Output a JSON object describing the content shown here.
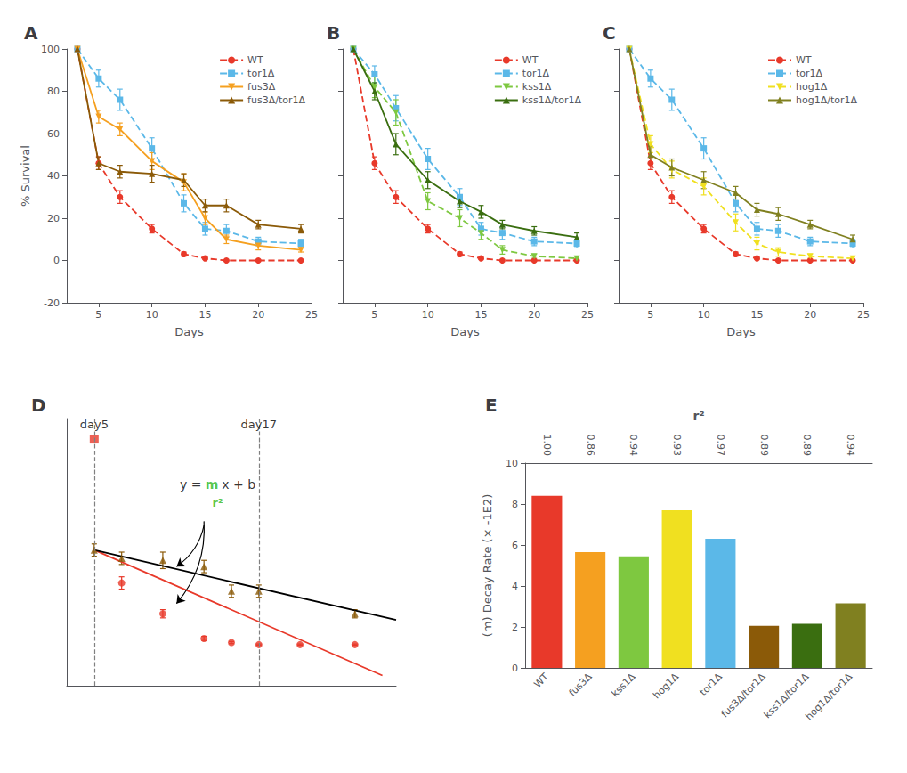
{
  "chart_data": [
    {
      "type": "line",
      "title": "A",
      "xlabel": "Days",
      "ylabel": "% Survival",
      "x": [
        3,
        5,
        7,
        10,
        13,
        15,
        17,
        20,
        24
      ],
      "series": [
        {
          "name": "WT",
          "color": "#e8392a",
          "marker": "circle",
          "line_style": "dashed",
          "values": [
            100,
            46,
            30,
            15,
            3,
            1,
            0,
            0,
            0
          ],
          "yerr": [
            0,
            3,
            3,
            2,
            1,
            0.5,
            0.3,
            0.2,
            0.2
          ]
        },
        {
          "name": "tor1Δ",
          "color": "#5bb8e8",
          "marker": "square",
          "line_style": "dashed",
          "values": [
            100,
            86,
            76,
            53,
            27,
            15,
            14,
            9,
            8
          ],
          "yerr": [
            0,
            4,
            5,
            5,
            4,
            3,
            3,
            2,
            2
          ]
        },
        {
          "name": "fus3Δ",
          "color": "#f5a020",
          "marker": "triangle-down",
          "line_style": "solid",
          "values": [
            100,
            68,
            62,
            47,
            37,
            20,
            10,
            7,
            5
          ],
          "yerr": [
            0,
            3,
            3,
            4,
            4,
            3,
            2,
            2,
            1
          ]
        },
        {
          "name": "fus3Δ/tor1Δ",
          "color": "#8b5a08",
          "marker": "triangle-up",
          "line_style": "solid",
          "values": [
            100,
            46,
            42,
            41,
            38,
            26,
            26,
            17,
            15
          ],
          "yerr": [
            0,
            3,
            3,
            4,
            3,
            3,
            3,
            2,
            2
          ]
        }
      ],
      "xlim": [
        2,
        25
      ],
      "ylim": [
        -20,
        100
      ],
      "xticks": [
        5,
        10,
        15,
        20,
        25
      ],
      "yticks": [
        -20,
        0,
        20,
        40,
        60,
        80,
        100
      ],
      "legend": "upper right",
      "grid": false
    },
    {
      "type": "line",
      "title": "B",
      "xlabel": "Days",
      "x": [
        3,
        5,
        7,
        10,
        13,
        15,
        17,
        20,
        24
      ],
      "series": [
        {
          "name": "WT",
          "color": "#e8392a",
          "marker": "circle",
          "line_style": "dashed",
          "values": [
            100,
            46,
            30,
            15,
            3,
            1,
            0,
            0,
            0
          ],
          "yerr": [
            0,
            3,
            3,
            2,
            1,
            0.5,
            0.3,
            0.2,
            0.2
          ]
        },
        {
          "name": "tor1Δ",
          "color": "#5bb8e8",
          "marker": "square",
          "line_style": "dashed",
          "values": [
            100,
            88,
            72,
            48,
            30,
            15,
            13,
            9,
            8
          ],
          "yerr": [
            0,
            4,
            6,
            5,
            4,
            3,
            3,
            2,
            2
          ]
        },
        {
          "name": "kss1Δ",
          "color": "#7ec840",
          "marker": "triangle-down",
          "line_style": "dashed",
          "values": [
            100,
            82,
            70,
            28,
            20,
            13,
            5,
            2,
            1
          ],
          "yerr": [
            0,
            5,
            6,
            4,
            4,
            3,
            2,
            1,
            1
          ]
        },
        {
          "name": "kss1Δ/tor1Δ",
          "color": "#3a6e10",
          "marker": "triangle-up",
          "line_style": "solid",
          "values": [
            100,
            80,
            55,
            38,
            28,
            23,
            17,
            14,
            11
          ],
          "yerr": [
            0,
            4,
            5,
            4,
            3,
            3,
            2,
            2,
            2
          ]
        }
      ],
      "xlim": [
        2,
        25
      ],
      "ylim": [
        -20,
        100
      ],
      "xticks": [
        5,
        10,
        15,
        20,
        25
      ],
      "yticks": [
        -20,
        0,
        20,
        40,
        60,
        80,
        100
      ],
      "tick_labels": "x",
      "legend": "upper right",
      "grid": false
    },
    {
      "type": "line",
      "title": "C",
      "xlabel": "Days",
      "x": [
        3,
        5,
        7,
        10,
        13,
        15,
        17,
        20,
        24
      ],
      "series": [
        {
          "name": "WT",
          "color": "#e8392a",
          "marker": "circle",
          "line_style": "dashed",
          "values": [
            100,
            46,
            30,
            15,
            3,
            1,
            0,
            0,
            0
          ],
          "yerr": [
            0,
            3,
            3,
            2,
            1,
            0.5,
            0.3,
            0.2,
            0.2
          ]
        },
        {
          "name": "tor1Δ",
          "color": "#5bb8e8",
          "marker": "square",
          "line_style": "dashed",
          "values": [
            100,
            86,
            76,
            53,
            27,
            15,
            14,
            9,
            8
          ],
          "yerr": [
            0,
            4,
            5,
            5,
            4,
            3,
            3,
            2,
            2
          ]
        },
        {
          "name": "hog1Δ",
          "color": "#f0e020",
          "marker": "triangle-down",
          "line_style": "dashed",
          "values": [
            100,
            55,
            43,
            35,
            18,
            8,
            4,
            2,
            1
          ],
          "yerr": [
            0,
            4,
            4,
            4,
            4,
            3,
            2,
            1,
            1
          ]
        },
        {
          "name": "hog1Δ/tor1Δ",
          "color": "#808020",
          "marker": "triangle-up",
          "line_style": "solid",
          "values": [
            100,
            50,
            44,
            38,
            32,
            24,
            22,
            17,
            10
          ],
          "yerr": [
            0,
            4,
            4,
            4,
            3,
            3,
            3,
            2,
            2
          ]
        }
      ],
      "xlim": [
        2,
        25
      ],
      "ylim": [
        -20,
        100
      ],
      "xticks": [
        5,
        10,
        15,
        20,
        25
      ],
      "yticks": [
        -20,
        0,
        20,
        40,
        60,
        80,
        100
      ],
      "tick_labels": "x",
      "legend": "upper right",
      "grid": false
    },
    {
      "type": "scatter",
      "title": "D",
      "series": [
        {
          "type": "line",
          "color": "#e8392a",
          "line_style": "solid",
          "x": [
            5,
            26
          ],
          "values": [
            46,
            -15
          ]
        },
        {
          "type": "line",
          "color": "black",
          "line_style": "solid",
          "x": [
            5,
            27
          ],
          "values": [
            46,
            12
          ]
        },
        {
          "type": "scatter",
          "color": "#e8392a",
          "marker": "circle",
          "x": [
            7,
            10,
            13,
            15,
            17,
            20,
            24
          ],
          "values": [
            30,
            15,
            3,
            1,
            0,
            0,
            0
          ],
          "yerr": [
            3,
            2,
            1,
            0.5,
            0.3,
            0.3,
            0.3
          ]
        },
        {
          "type": "scatter",
          "color": "#8b5a08",
          "marker": "triangle-up",
          "x": [
            5,
            7,
            10,
            13,
            15,
            17,
            24
          ],
          "values": [
            46,
            42,
            41,
            38,
            26,
            26,
            15
          ],
          "yerr": [
            3,
            3,
            4,
            3,
            3,
            3,
            2
          ]
        },
        {
          "type": "scatter",
          "color": "#e8392a",
          "marker": "square",
          "x": [
            5
          ],
          "values": [
            100
          ]
        }
      ],
      "vlines": [
        5,
        17
      ],
      "annotations": [
        {
          "text": "day5",
          "x": 5,
          "y": 107
        },
        {
          "text": "day17",
          "x": 17,
          "y": 107
        },
        {
          "x": 14,
          "y": 78,
          "parts": [
            {
              "text": "y ="
            },
            {
              "text": "m",
              "color": "#2db820"
            },
            {
              "text": "x + b"
            }
          ]
        },
        {
          "text": "r²",
          "x": 14,
          "y": 69,
          "color": "#2db820"
        }
      ],
      "arrows": [
        {
          "x": [
            13,
            11
          ],
          "y": [
            60,
            20
          ]
        },
        {
          "x": [
            13,
            11
          ],
          "y": [
            58,
            38
          ]
        }
      ],
      "xlim": [
        3,
        27
      ],
      "ylim": [
        -20,
        110
      ],
      "xticks": [],
      "yticks": [],
      "tick_labels": false,
      "grid": false
    },
    {
      "type": "bar",
      "title": "E",
      "ylabel": "(m) Decay Rate (× -1E2)",
      "categories": [
        "WT",
        "fus3Δ",
        "kss1Δ",
        "hog1Δ",
        "tor1Δ",
        "fus3Δ/tor1Δ",
        "kss1Δ/tor1Δ",
        "hog1Δ/tor1Δ"
      ],
      "values": [
        8.4,
        5.65,
        5.45,
        7.7,
        6.3,
        2.05,
        2.15,
        3.15
      ],
      "colors": [
        "#e8392a",
        "#f5a020",
        "#7ec840",
        "#f0e020",
        "#5bb8e8",
        "#8b5a08",
        "#3a6e10",
        "#808020"
      ],
      "r2_label": "r²",
      "r2": [
        {
          "value": 1.0,
          "label": "1.00"
        },
        0.86,
        0.94,
        0.93,
        0.97,
        0.89,
        0.89,
        0.94
      ],
      "ylim": [
        0,
        10
      ],
      "yticks": [
        0,
        2,
        4,
        6,
        8,
        10
      ],
      "grid": false
    }
  ]
}
